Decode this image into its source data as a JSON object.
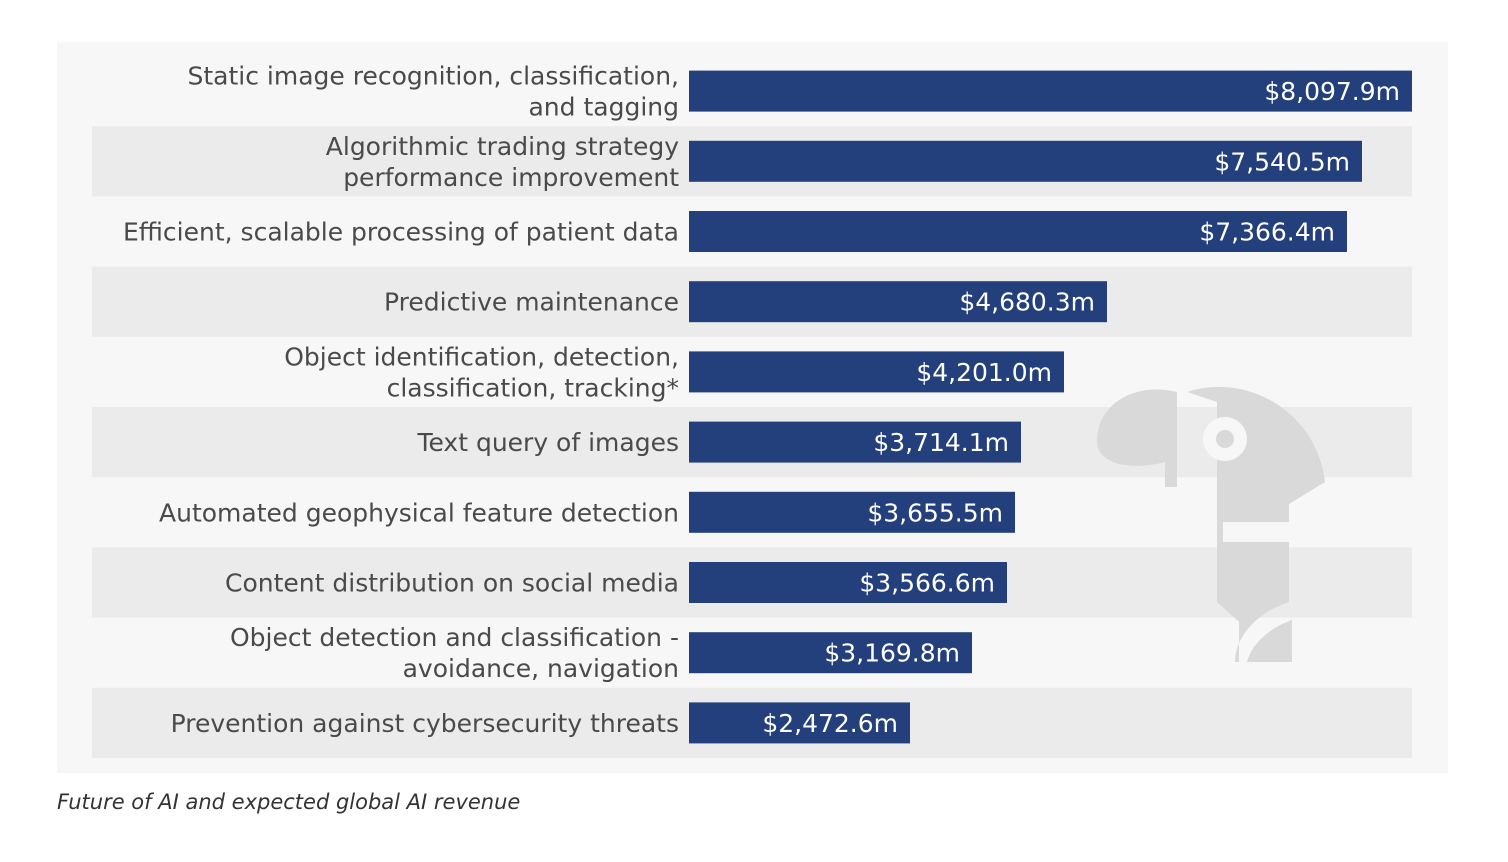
{
  "caption": "Future of AI and expected global AI revenue",
  "colors": {
    "bar": "#233f7c",
    "row_band": "#ebebeb",
    "card": "#f7f7f7",
    "label": "#4a4a4a",
    "value_label": "#ffffff"
  },
  "watermark_icon": "robot-head-icon",
  "chart_data": {
    "type": "bar",
    "orientation": "horizontal",
    "categories": [
      [
        "Static image recognition, classification,",
        "and tagging"
      ],
      [
        "Algorithmic trading strategy",
        "performance improvement"
      ],
      [
        "Efficient, scalable processing of patient data"
      ],
      [
        "Predictive maintenance"
      ],
      [
        "Object identification, detection,",
        "classification, tracking*"
      ],
      [
        "Text query of images"
      ],
      [
        "Automated geophysical feature detection"
      ],
      [
        "Content distribution on social media"
      ],
      [
        "Object detection and classification -",
        "avoidance, navigation"
      ],
      [
        "Prevention against cybersecurity threats"
      ]
    ],
    "values": [
      8097.9,
      7540.5,
      7366.4,
      4680.3,
      4201.0,
      3714.1,
      3655.5,
      3566.6,
      3169.8,
      2472.6
    ],
    "value_labels": [
      "$8,097.9m",
      "$7,540.5m",
      "$7,366.4m",
      "$4,680.3m",
      "$4,201.0m",
      "$3,714.1m",
      "$3,655.5m",
      "$3,566.6m",
      "$3,169.8m",
      "$2,472.6m"
    ],
    "unit": "million U.S. dollars",
    "xlim": [
      0,
      8097.9
    ],
    "grid": false,
    "legend": false
  }
}
